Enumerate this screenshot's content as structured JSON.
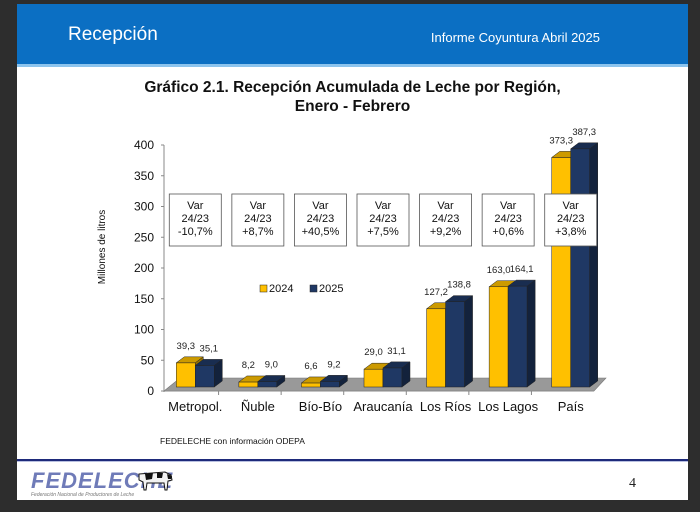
{
  "header": {
    "section_title": "Recepción",
    "report_title": "Informe Coyuntura Abril 2025"
  },
  "chart_data": {
    "type": "bar",
    "title_line1": "Gráfico 2.1. Recepción Acumulada de Leche por Región,",
    "title_line2": "Enero - Febrero",
    "xlabel": "",
    "ylabel": "Millones de litros",
    "ylim": [
      0,
      400
    ],
    "yticks": [
      0,
      50,
      100,
      150,
      200,
      250,
      300,
      350,
      400
    ],
    "grid": false,
    "legend_position": "center-left",
    "categories": [
      "Metropol.",
      "Ñuble",
      "Bío-Bío",
      "Araucanía",
      "Los Ríos",
      "Los Lagos",
      "País"
    ],
    "series": [
      {
        "name": "2024",
        "color": "#ffc000",
        "values": [
          39.3,
          8.2,
          6.6,
          29.0,
          127.2,
          163.0,
          373.3
        ],
        "labels": [
          "39,3",
          "8,2",
          "6,6",
          "29,0",
          "127,2",
          "163,0",
          "373,3"
        ]
      },
      {
        "name": "2025",
        "color": "#1f3864",
        "values": [
          35.1,
          9.0,
          9.2,
          31.1,
          138.8,
          164.1,
          387.3
        ],
        "labels": [
          "35,1",
          "9,0",
          "9,2",
          "31,1",
          "138,8",
          "164,1",
          "387,3"
        ]
      }
    ],
    "annotations": [
      {
        "line1": "Var",
        "line2": "24/23",
        "line3": "-10,7%"
      },
      {
        "line1": "Var",
        "line2": "24/23",
        "line3": "+8,7%"
      },
      {
        "line1": "Var",
        "line2": "24/23",
        "line3": "+40,5%"
      },
      {
        "line1": "Var",
        "line2": "24/23",
        "line3": "+7,5%"
      },
      {
        "line1": "Var",
        "line2": "24/23",
        "line3": "+9,2%"
      },
      {
        "line1": "Var",
        "line2": "24/23",
        "line3": "+0,6%"
      },
      {
        "line1": "Var",
        "line2": "24/23",
        "line3": "+3,8%"
      }
    ]
  },
  "source": "FEDELECHE con información ODEPA",
  "footer": {
    "logo_text": "FEDELECHE",
    "logo_subtitle": "Federación Nacional de Productores de Leche",
    "page_number": "4"
  }
}
